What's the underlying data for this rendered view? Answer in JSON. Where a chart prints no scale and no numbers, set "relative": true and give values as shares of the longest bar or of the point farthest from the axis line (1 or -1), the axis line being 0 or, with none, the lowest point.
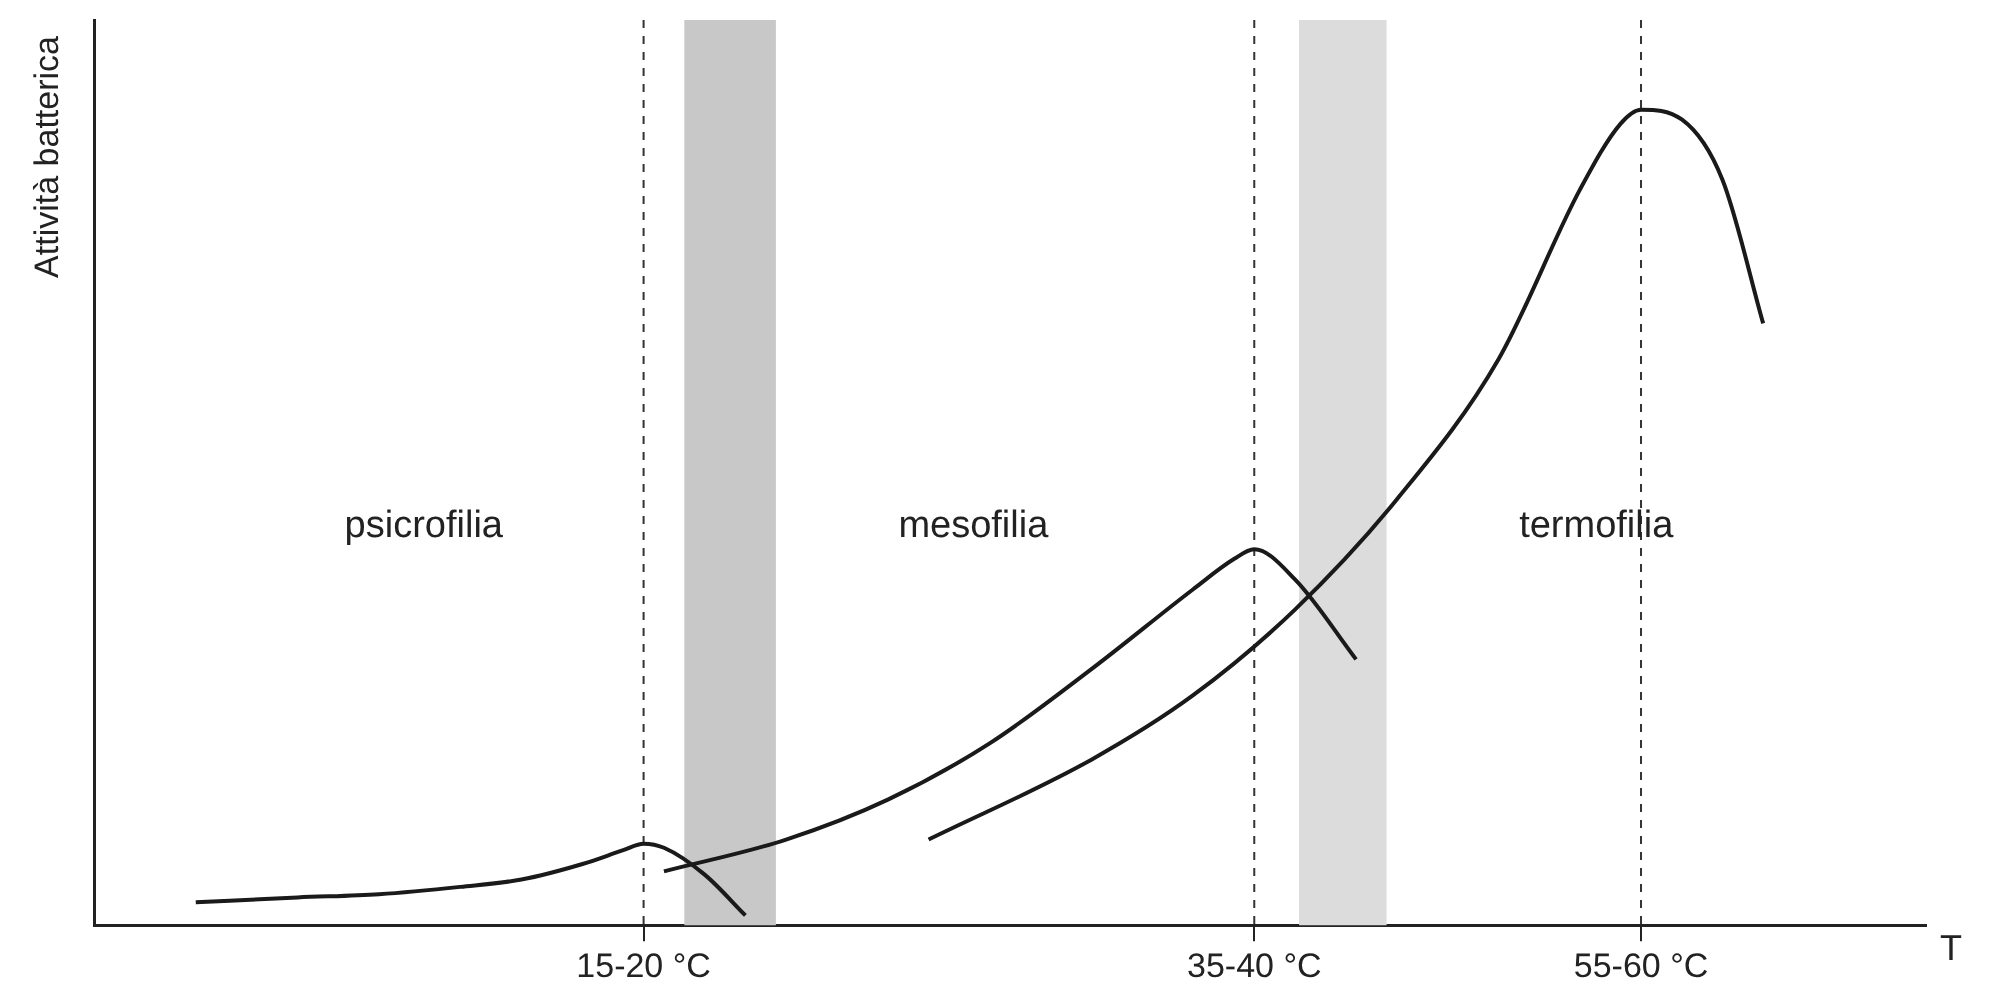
{
  "chart_data": {
    "type": "line",
    "relative": true,
    "xlabel": "T",
    "ylabel": "Attività batterica",
    "categories": [
      null,
      null,
      null,
      null,
      null,
      null,
      null,
      null,
      null,
      null,
      null,
      null,
      null,
      null,
      null,
      null,
      null,
      null,
      null,
      null,
      null,
      null,
      null,
      null,
      null,
      null,
      null,
      "15-20 °C",
      null,
      null,
      null,
      null,
      null,
      null,
      null,
      null,
      null,
      null,
      null,
      null,
      null,
      null,
      null,
      null,
      null,
      null,
      null,
      null,
      null,
      null,
      null,
      null,
      null,
      null,
      null,
      null,
      null,
      "35-40 °C",
      null,
      null,
      null,
      null,
      null,
      null,
      null,
      null,
      null,
      null,
      null,
      null,
      null,
      null,
      null,
      null,
      null,
      null,
      "55-60 °C",
      null,
      null,
      null,
      null,
      null,
      null,
      null,
      null,
      null,
      null,
      null,
      null,
      null,
      null
    ],
    "series": [
      {
        "color": "#1a1a1a",
        "values": [
          null,
          null,
          null,
          null,
          null,
          0.028,
          null,
          null,
          null,
          null,
          0.034,
          null,
          null,
          null,
          0.038,
          null,
          null,
          null,
          0.047,
          null,
          null,
          0.056,
          null,
          null,
          0.075,
          null,
          0.092,
          0.1,
          0.095,
          null,
          0.062,
          null,
          0.012,
          null,
          null,
          null,
          null,
          null,
          null,
          null,
          null,
          null,
          null,
          null,
          null,
          null,
          null,
          null,
          null,
          null,
          null,
          null,
          null,
          null,
          null,
          null,
          null,
          null,
          null,
          null,
          null,
          null,
          null,
          null,
          null,
          null,
          null,
          null,
          null,
          null,
          null,
          null,
          null,
          null,
          null,
          null,
          null,
          null,
          null,
          null,
          null,
          null,
          null,
          null,
          null,
          null,
          null,
          null,
          null,
          null,
          null
        ]
      },
      {
        "color": "#1a1a1a",
        "values": [
          null,
          null,
          null,
          null,
          null,
          null,
          null,
          null,
          null,
          null,
          null,
          null,
          null,
          null,
          null,
          null,
          null,
          null,
          null,
          null,
          null,
          null,
          null,
          null,
          null,
          null,
          null,
          null,
          0.066,
          null,
          null,
          null,
          null,
          null,
          0.105,
          null,
          null,
          null,
          null,
          0.154,
          null,
          null,
          null,
          null,
          0.223,
          null,
          null,
          null,
          null,
          0.314,
          null,
          null,
          null,
          null,
          0.412,
          null,
          0.449,
          0.461,
          null,
          0.424,
          null,
          null,
          0.326,
          null,
          null,
          null,
          null,
          null,
          null,
          null,
          null,
          null,
          null,
          null,
          null,
          null,
          null,
          null,
          null,
          null,
          null,
          null,
          null,
          null,
          null,
          null,
          null,
          null,
          null,
          null,
          null
        ]
      },
      {
        "color": "#1a1a1a",
        "values": [
          null,
          null,
          null,
          null,
          null,
          null,
          null,
          null,
          null,
          null,
          null,
          null,
          null,
          null,
          null,
          null,
          null,
          null,
          null,
          null,
          null,
          null,
          null,
          null,
          null,
          null,
          null,
          null,
          null,
          null,
          null,
          null,
          null,
          null,
          null,
          null,
          null,
          null,
          null,
          null,
          null,
          0.105,
          null,
          null,
          null,
          null,
          null,
          null,
          null,
          0.203,
          null,
          null,
          null,
          null,
          0.282,
          null,
          null,
          null,
          null,
          0.387,
          null,
          null,
          null,
          null,
          0.522,
          null,
          null,
          null,
          null,
          0.694,
          null,
          null,
          null,
          0.902,
          null,
          0.983,
          1,
          null,
          0.988,
          null,
          0.914,
          null,
          0.738,
          null,
          null,
          null,
          null,
          null,
          null,
          null,
          null
        ]
      }
    ],
    "ref_lines": [
      {
        "axis": "x",
        "value": "15-20 °C",
        "line_style": "dashed",
        "color": "#333333"
      },
      {
        "axis": "x",
        "value": "35-40 °C",
        "line_style": "dashed",
        "color": "#333333"
      },
      {
        "axis": "x",
        "value": "55-60 °C",
        "line_style": "dashed",
        "color": "#333333"
      }
    ],
    "annotations": [
      "psicrofilia",
      "mesofilia",
      "termofilia"
    ],
    "grid": false,
    "legend": false,
    "marker": "none",
    "line_style": "solid"
  }
}
